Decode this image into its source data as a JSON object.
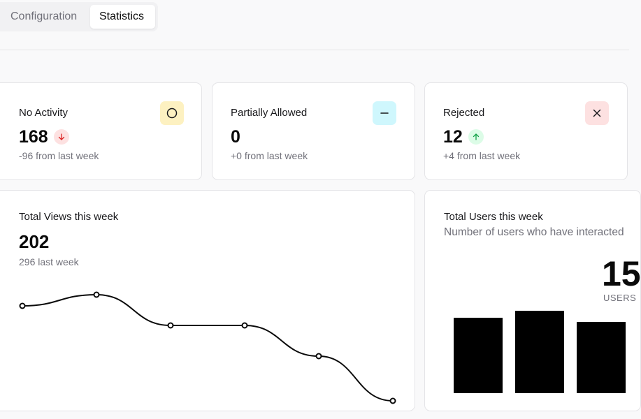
{
  "tabs": [
    {
      "label": "Configuration",
      "active": false
    },
    {
      "label": "Statistics",
      "active": true
    }
  ],
  "stats": [
    {
      "title": "No Activity",
      "value": "168",
      "delta": "-96 from last week",
      "trend": "down",
      "icon": "circle-icon",
      "badge_color": "#fdf1c1",
      "trend_color": "#fde1e1"
    },
    {
      "title": "Partially Allowed",
      "value": "0",
      "delta": "+0 from last week",
      "trend": "none",
      "icon": "minus-icon",
      "badge_color": "#cff7fd"
    },
    {
      "title": "Rejected",
      "value": "12",
      "delta": "+4 from last week",
      "trend": "up",
      "icon": "x-icon",
      "badge_color": "#fde1e1",
      "trend_color": "#dcfce7"
    }
  ],
  "views": {
    "title": "Total Views this week",
    "value": "202",
    "subtitle": "296 last week"
  },
  "users": {
    "title": "Total Users this week",
    "subtitle": "Number of users who have interacted",
    "value": "15",
    "value_label": "USERS"
  },
  "chart_data": [
    {
      "type": "line",
      "x": [
        1,
        2,
        3,
        4,
        5,
        6
      ],
      "values": [
        38,
        42,
        31,
        31,
        20,
        4
      ],
      "ylim": [
        0,
        50
      ],
      "grid": false,
      "legend": "none"
    },
    {
      "type": "bar",
      "values": [
        5.4,
        5.9,
        5.1
      ],
      "ylim": [
        0,
        7
      ],
      "grid": false,
      "legend": "none"
    }
  ]
}
